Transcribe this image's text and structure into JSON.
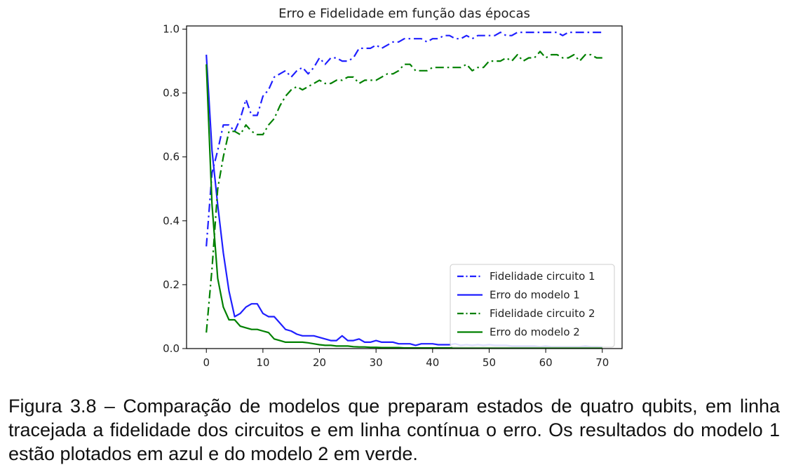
{
  "chart_data": {
    "type": "line",
    "title": "Erro e Fidelidade em função das épocas",
    "xlabel": "",
    "ylabel": "",
    "xlim": [
      -3.5,
      73.5
    ],
    "ylim": [
      0.0,
      1.01
    ],
    "xticks": [
      0,
      10,
      20,
      30,
      40,
      50,
      60,
      70
    ],
    "yticks": [
      0.0,
      0.2,
      0.4,
      0.6,
      0.8,
      1.0
    ],
    "ytick_labels": [
      "0.0",
      "0.2",
      "0.4",
      "0.6",
      "0.8",
      "1.0"
    ],
    "grid": false,
    "legend_position": "lower-right",
    "x": [
      0,
      1,
      2,
      3,
      4,
      5,
      6,
      7,
      8,
      9,
      10,
      11,
      12,
      13,
      14,
      15,
      16,
      17,
      18,
      19,
      20,
      21,
      22,
      23,
      24,
      25,
      26,
      27,
      28,
      29,
      30,
      31,
      32,
      33,
      34,
      35,
      36,
      37,
      38,
      39,
      40,
      41,
      42,
      43,
      44,
      45,
      46,
      47,
      48,
      49,
      50,
      51,
      52,
      53,
      54,
      55,
      56,
      57,
      58,
      59,
      60,
      61,
      62,
      63,
      64,
      65,
      66,
      67,
      68,
      69,
      70
    ],
    "series": [
      {
        "name": "Fidelidade circuito 1",
        "color": "#1f1fff",
        "style": "dashdot",
        "values": [
          0.32,
          0.55,
          0.62,
          0.7,
          0.7,
          0.68,
          0.72,
          0.78,
          0.73,
          0.73,
          0.79,
          0.81,
          0.85,
          0.86,
          0.87,
          0.85,
          0.87,
          0.88,
          0.86,
          0.88,
          0.91,
          0.89,
          0.91,
          0.91,
          0.9,
          0.9,
          0.91,
          0.94,
          0.94,
          0.94,
          0.95,
          0.94,
          0.95,
          0.96,
          0.96,
          0.97,
          0.97,
          0.97,
          0.97,
          0.96,
          0.97,
          0.97,
          0.98,
          0.98,
          0.97,
          0.97,
          0.98,
          0.97,
          0.98,
          0.98,
          0.98,
          0.98,
          0.99,
          0.98,
          0.98,
          0.99,
          0.99,
          0.99,
          0.99,
          0.99,
          0.99,
          0.99,
          0.99,
          0.98,
          0.99,
          0.99,
          0.99,
          0.99,
          0.99,
          0.99,
          0.99
        ]
      },
      {
        "name": "Erro do modelo 1",
        "color": "#1f1fff",
        "style": "solid",
        "values": [
          0.92,
          0.62,
          0.45,
          0.3,
          0.18,
          0.1,
          0.11,
          0.13,
          0.14,
          0.14,
          0.11,
          0.1,
          0.1,
          0.08,
          0.06,
          0.055,
          0.045,
          0.04,
          0.04,
          0.04,
          0.035,
          0.03,
          0.025,
          0.025,
          0.04,
          0.025,
          0.025,
          0.03,
          0.02,
          0.02,
          0.025,
          0.02,
          0.02,
          0.02,
          0.015,
          0.015,
          0.015,
          0.01,
          0.015,
          0.015,
          0.015,
          0.012,
          0.012,
          0.012,
          0.015,
          0.01,
          0.012,
          0.01,
          0.012,
          0.01,
          0.012,
          0.01,
          0.01,
          0.01,
          0.008,
          0.008,
          0.008,
          0.008,
          0.008,
          0.006,
          0.008,
          0.006,
          0.006,
          0.006,
          0.006,
          0.006,
          0.006,
          0.008,
          0.006,
          0.006,
          0.005
        ]
      },
      {
        "name": "Fidelidade circuito 2",
        "color": "#008000",
        "style": "dashdot",
        "values": [
          0.05,
          0.25,
          0.5,
          0.6,
          0.68,
          0.68,
          0.67,
          0.7,
          0.68,
          0.67,
          0.67,
          0.7,
          0.72,
          0.76,
          0.79,
          0.81,
          0.82,
          0.81,
          0.82,
          0.83,
          0.84,
          0.83,
          0.83,
          0.84,
          0.84,
          0.85,
          0.85,
          0.83,
          0.84,
          0.84,
          0.84,
          0.85,
          0.86,
          0.86,
          0.87,
          0.89,
          0.89,
          0.87,
          0.87,
          0.87,
          0.88,
          0.88,
          0.88,
          0.88,
          0.88,
          0.88,
          0.89,
          0.87,
          0.88,
          0.88,
          0.9,
          0.9,
          0.9,
          0.91,
          0.9,
          0.92,
          0.9,
          0.91,
          0.91,
          0.93,
          0.91,
          0.92,
          0.92,
          0.91,
          0.91,
          0.92,
          0.9,
          0.92,
          0.92,
          0.91,
          0.91
        ]
      },
      {
        "name": "Erro do modelo 2",
        "color": "#008000",
        "style": "solid",
        "values": [
          0.89,
          0.45,
          0.22,
          0.13,
          0.09,
          0.09,
          0.07,
          0.065,
          0.06,
          0.06,
          0.055,
          0.05,
          0.03,
          0.025,
          0.02,
          0.02,
          0.02,
          0.02,
          0.018,
          0.015,
          0.012,
          0.01,
          0.01,
          0.008,
          0.008,
          0.008,
          0.006,
          0.005,
          0.005,
          0.004,
          0.004,
          0.003,
          0.003,
          0.003,
          0.003,
          0.002,
          0.002,
          0.002,
          0.002,
          0.002,
          0.002,
          0.002,
          0.002,
          0.002,
          0.002,
          0.002,
          0.002,
          0.002,
          0.002,
          0.002,
          0.002,
          0.002,
          0.002,
          0.002,
          0.002,
          0.002,
          0.002,
          0.002,
          0.002,
          0.002,
          0.002,
          0.002,
          0.002,
          0.002,
          0.002,
          0.002,
          0.002,
          0.002,
          0.002,
          0.002,
          0.002
        ]
      }
    ]
  },
  "caption": "Figura 3.8 – Comparação de modelos que preparam estados de quatro qubits, em linha tracejada a fidelidade dos circuitos e em linha contínua o erro. Os resultados do modelo 1 estão plotados em azul e do modelo 2 em verde."
}
